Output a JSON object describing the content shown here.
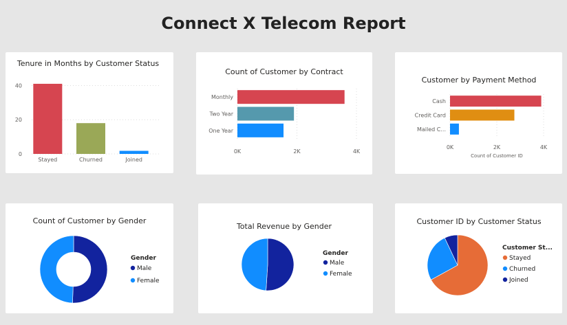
{
  "page": {
    "title": "Connect X Telecom Report"
  },
  "chart_data": [
    {
      "id": "tenure",
      "type": "bar",
      "title": "Tenure in Months by Customer Status",
      "categories": [
        "Stayed",
        "Churned",
        "Joined"
      ],
      "values": [
        41,
        18,
        1.8
      ],
      "colors": [
        "#d64550",
        "#9aa857",
        "#118dff"
      ],
      "yticks": [
        "0",
        "20",
        "40"
      ],
      "ylim": [
        0,
        45
      ],
      "grid": true
    },
    {
      "id": "contract",
      "type": "bar",
      "orientation": "horizontal",
      "title": "Count of Customer by Contract",
      "categories": [
        "Monthly",
        "Two Year",
        "One Year"
      ],
      "values": [
        3600,
        1900,
        1550
      ],
      "colors": [
        "#d64550",
        "#5599ad",
        "#118dff"
      ],
      "xticks": [
        "0K",
        "2K",
        "4K"
      ],
      "xlim": [
        0,
        4000
      ],
      "grid": true
    },
    {
      "id": "payment",
      "type": "bar",
      "orientation": "horizontal",
      "title": "Customer by Payment Method",
      "categories": [
        "Cash",
        "Credit Card",
        "Mailed C..."
      ],
      "values": [
        3900,
        2750,
        380
      ],
      "colors": [
        "#d64550",
        "#e08e12",
        "#118dff"
      ],
      "xticks": [
        "0K",
        "2K",
        "4K"
      ],
      "xlim": [
        0,
        4000
      ],
      "xlabel": "Count of Customer ID",
      "grid": true
    },
    {
      "id": "gender-count",
      "type": "pie",
      "variant": "donut",
      "title": "Count of Customer by Gender",
      "legend_title": "Gender",
      "labels": [
        "Male",
        "Female"
      ],
      "values": [
        50.5,
        49.5
      ],
      "colors": [
        "#12239e",
        "#118dff"
      ],
      "legend": "right"
    },
    {
      "id": "revenue-gender",
      "type": "pie",
      "title": "Total Revenue by Gender",
      "legend_title": "Gender",
      "labels": [
        "Male",
        "Female"
      ],
      "values": [
        51,
        49
      ],
      "colors": [
        "#12239e",
        "#118dff"
      ],
      "legend": "right"
    },
    {
      "id": "status",
      "type": "pie",
      "title": "Customer ID by Customer Status",
      "legend_title": "Customer St...",
      "labels": [
        "Stayed",
        "Churned",
        "Joined"
      ],
      "values": [
        67,
        26,
        7
      ],
      "colors": [
        "#e66c37",
        "#118dff",
        "#12239e"
      ],
      "legend": "right"
    }
  ]
}
